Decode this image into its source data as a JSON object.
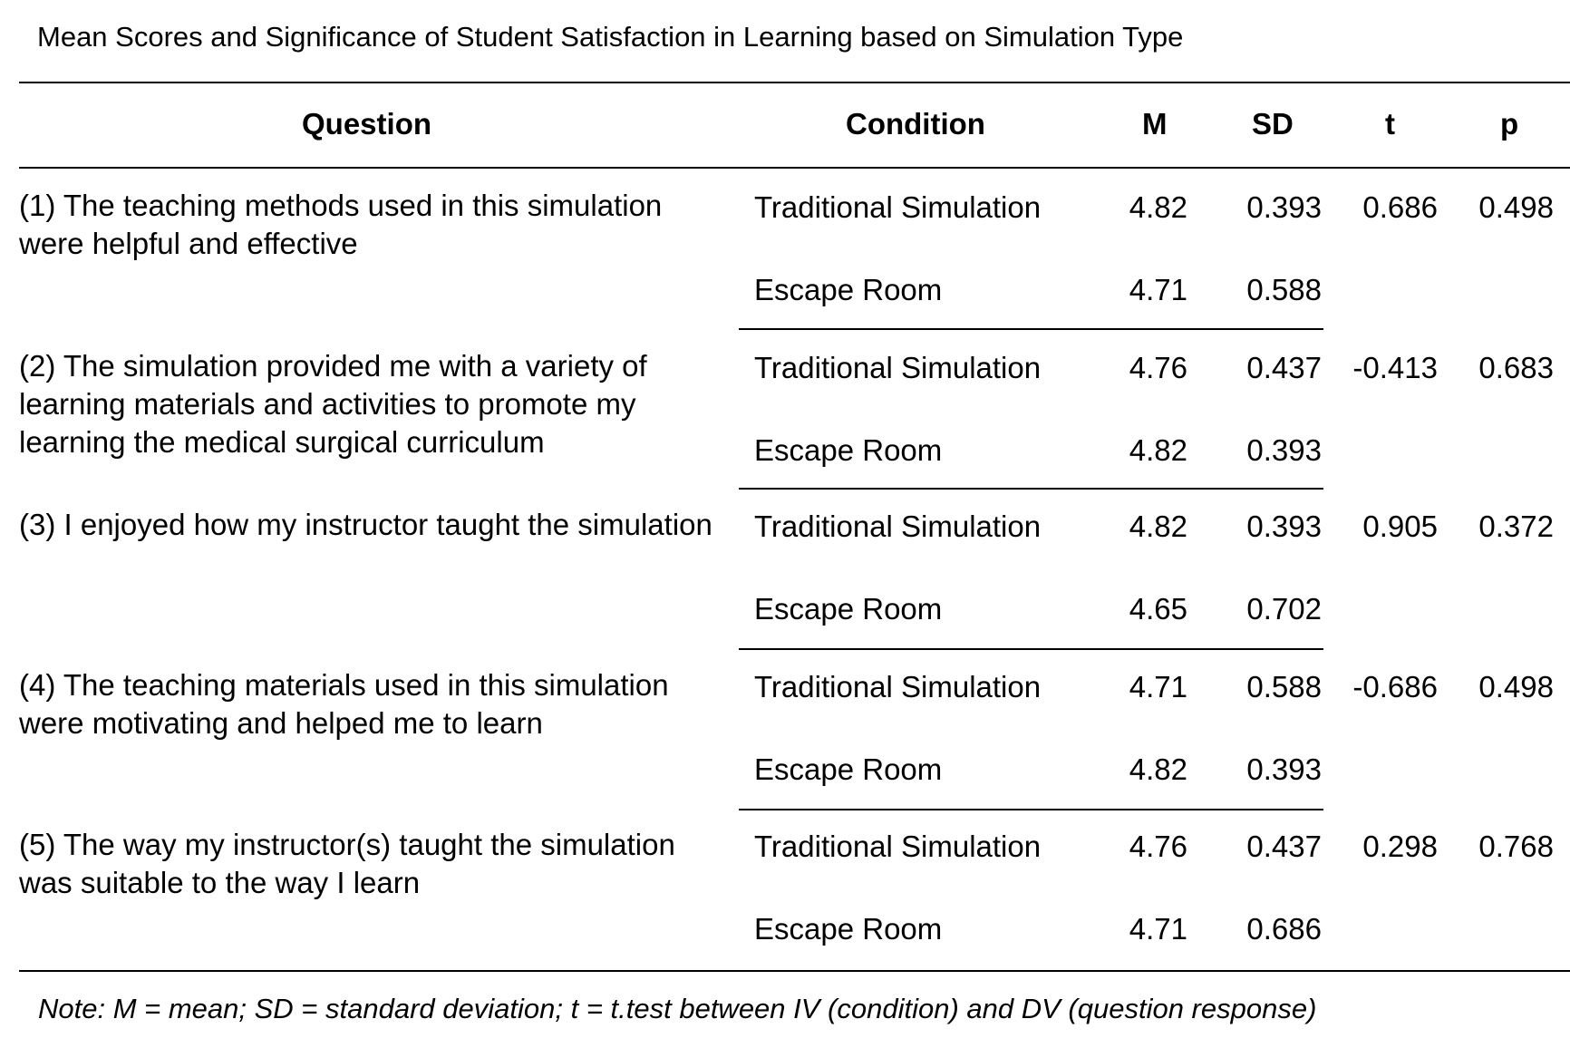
{
  "table": {
    "caption": "Mean Scores and Significance of Student Satisfaction in Learning based on Simulation Type",
    "headers": {
      "question": "Question",
      "condition": "Condition",
      "m": "M",
      "sd": "SD",
      "t": "t",
      "p": "p"
    },
    "groups": [
      {
        "question": "(1) The teaching methods used in this simulation were helpful and effective",
        "t": "0.686",
        "p": "0.498",
        "rows": [
          {
            "condition": "Traditional Simulation",
            "m": "4.82",
            "sd": "0.393"
          },
          {
            "condition": "Escape Room",
            "m": "4.71",
            "sd": "0.588"
          }
        ]
      },
      {
        "question": "(2) The simulation provided me with a variety of learning materials and activities to promote my learning the medical surgical curriculum",
        "t": "-0.413",
        "p": "0.683",
        "rows": [
          {
            "condition": "Traditional Simulation",
            "m": "4.76",
            "sd": "0.437"
          },
          {
            "condition": "Escape Room",
            "m": "4.82",
            "sd": "0.393"
          }
        ]
      },
      {
        "question": "(3) I enjoyed how my instructor taught the simulation",
        "t": "0.905",
        "p": "0.372",
        "rows": [
          {
            "condition": "Traditional Simulation",
            "m": "4.82",
            "sd": "0.393"
          },
          {
            "condition": "Escape Room",
            "m": "4.65",
            "sd": "0.702"
          }
        ]
      },
      {
        "question": "(4) The teaching materials used in this simulation were motivating and helped me to learn",
        "t": "-0.686",
        "p": "0.498",
        "rows": [
          {
            "condition": "Traditional Simulation",
            "m": "4.71",
            "sd": "0.588"
          },
          {
            "condition": "Escape Room",
            "m": "4.82",
            "sd": "0.393"
          }
        ]
      },
      {
        "question": "(5) The way my instructor(s) taught the simulation was suitable to the way I learn",
        "t": "0.298",
        "p": "0.768",
        "rows": [
          {
            "condition": "Traditional Simulation",
            "m": "4.76",
            "sd": "0.437"
          },
          {
            "condition": "Escape Room",
            "m": "4.71",
            "sd": "0.686"
          }
        ]
      }
    ],
    "note": "Note: M = mean; SD = standard deviation; t = t.test between IV (condition) and DV (question response)"
  }
}
